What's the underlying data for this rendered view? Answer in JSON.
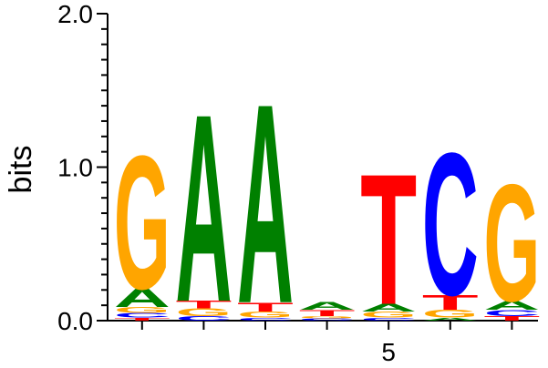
{
  "chart_data": {
    "type": "sequence-logo",
    "title": "",
    "ylabel": "bits",
    "xlabel": "",
    "ylim": [
      0,
      2
    ],
    "y_ticks": [
      {
        "value": 0,
        "label": "0.0"
      },
      {
        "value": 1,
        "label": "1.0"
      },
      {
        "value": 2,
        "label": "2.0"
      }
    ],
    "x_ticks": [
      {
        "position": 5,
        "label": "5"
      }
    ],
    "colors": {
      "A": "#008000",
      "C": "#0000ff",
      "G": "#ffa500",
      "T": "#ff0000"
    },
    "positions": [
      {
        "index": 1,
        "stack": [
          {
            "letter": "T",
            "height": 0.02
          },
          {
            "letter": "C",
            "height": 0.03
          },
          {
            "letter": "G",
            "height": 0.04
          },
          {
            "letter": "A",
            "height": 0.12
          },
          {
            "letter": "G",
            "height": 0.89
          }
        ]
      },
      {
        "index": 2,
        "stack": [
          {
            "letter": "C",
            "height": 0.03
          },
          {
            "letter": "G",
            "height": 0.05
          },
          {
            "letter": "T",
            "height": 0.05
          },
          {
            "letter": "A",
            "height": 1.25
          }
        ]
      },
      {
        "index": 3,
        "stack": [
          {
            "letter": "C",
            "height": 0.02
          },
          {
            "letter": "G",
            "height": 0.04
          },
          {
            "letter": "T",
            "height": 0.06
          },
          {
            "letter": "A",
            "height": 1.33
          }
        ]
      },
      {
        "index": 4,
        "stack": [
          {
            "letter": "C",
            "height": 0.015
          },
          {
            "letter": "G",
            "height": 0.015
          },
          {
            "letter": "T",
            "height": 0.04
          },
          {
            "letter": "A",
            "height": 0.05
          }
        ]
      },
      {
        "index": 5,
        "stack": [
          {
            "letter": "C",
            "height": 0.02
          },
          {
            "letter": "G",
            "height": 0.04
          },
          {
            "letter": "A",
            "height": 0.05
          },
          {
            "letter": "T",
            "height": 0.87
          }
        ]
      },
      {
        "index": 6,
        "stack": [
          {
            "letter": "A",
            "height": 0.02
          },
          {
            "letter": "G",
            "height": 0.05
          },
          {
            "letter": "T",
            "height": 0.1
          },
          {
            "letter": "C",
            "height": 0.95
          }
        ]
      },
      {
        "index": 7,
        "stack": [
          {
            "letter": "T",
            "height": 0.03
          },
          {
            "letter": "C",
            "height": 0.04
          },
          {
            "letter": "A",
            "height": 0.06
          },
          {
            "letter": "G",
            "height": 0.78
          }
        ]
      }
    ]
  }
}
